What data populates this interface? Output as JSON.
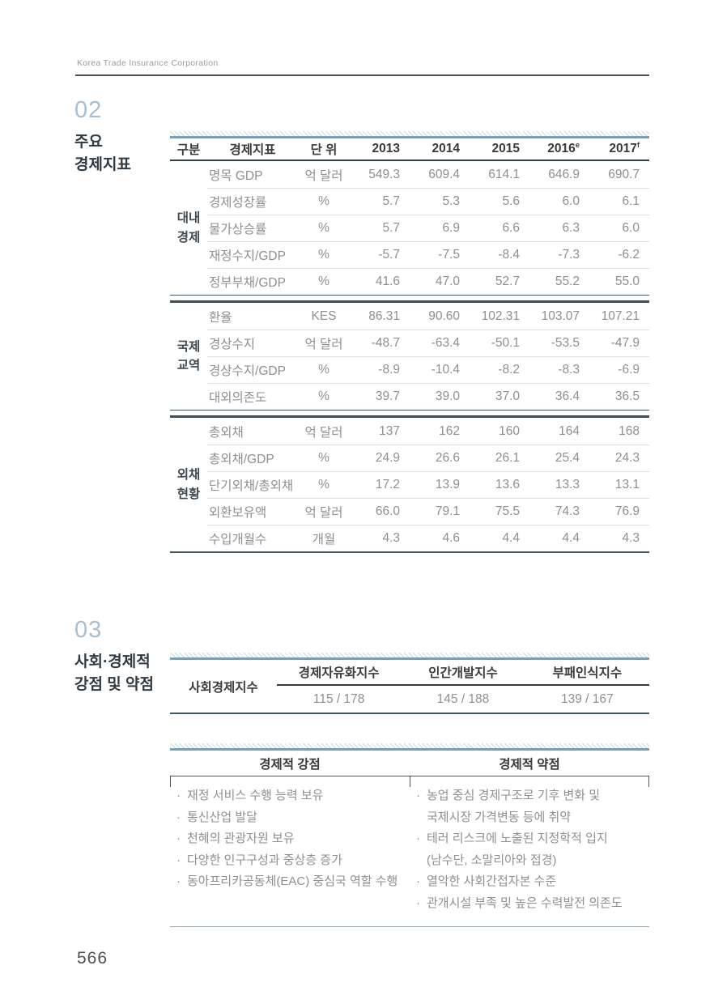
{
  "brand": "Korea Trade Insurance Corporation",
  "page_number": "566",
  "section02": {
    "number": "02",
    "title_line1": "주요",
    "title_line2": "경제지표",
    "table": {
      "h_group": "구분",
      "h_indicator": "경제지표",
      "h_unit": "단 위",
      "years": [
        {
          "label": "2013",
          "sup": ""
        },
        {
          "label": "2014",
          "sup": ""
        },
        {
          "label": "2015",
          "sup": ""
        },
        {
          "label": "2016",
          "sup": "e"
        },
        {
          "label": "2017",
          "sup": "f"
        }
      ],
      "groups": [
        {
          "name1": "대내",
          "name2": "경제",
          "rows": [
            {
              "label": "명목 GDP",
              "unit": "억 달러",
              "values": [
                "549.3",
                "609.4",
                "614.1",
                "646.9",
                "690.7"
              ]
            },
            {
              "label": "경제성장률",
              "unit": "%",
              "values": [
                "5.7",
                "5.3",
                "5.6",
                "6.0",
                "6.1"
              ]
            },
            {
              "label": "물가상승률",
              "unit": "%",
              "values": [
                "5.7",
                "6.9",
                "6.6",
                "6.3",
                "6.0"
              ]
            },
            {
              "label": "재정수지/GDP",
              "unit": "%",
              "values": [
                "-5.7",
                "-7.5",
                "-8.4",
                "-7.3",
                "-6.2"
              ]
            },
            {
              "label": "정부부채/GDP",
              "unit": "%",
              "values": [
                "41.6",
                "47.0",
                "52.7",
                "55.2",
                "55.0"
              ]
            }
          ]
        },
        {
          "name1": "국제",
          "name2": "교역",
          "rows": [
            {
              "label": "환율",
              "unit": "KES",
              "values": [
                "86.31",
                "90.60",
                "102.31",
                "103.07",
                "107.21"
              ]
            },
            {
              "label": "경상수지",
              "unit": "억 달러",
              "values": [
                "-48.7",
                "-63.4",
                "-50.1",
                "-53.5",
                "-47.9"
              ]
            },
            {
              "label": "경상수지/GDP",
              "unit": "%",
              "values": [
                "-8.9",
                "-10.4",
                "-8.2",
                "-8.3",
                "-6.9"
              ]
            },
            {
              "label": "대외의존도",
              "unit": "%",
              "values": [
                "39.7",
                "39.0",
                "37.0",
                "36.4",
                "36.5"
              ]
            }
          ]
        },
        {
          "name1": "외채",
          "name2": "현황",
          "rows": [
            {
              "label": "총외채",
              "unit": "억 달러",
              "values": [
                "137",
                "162",
                "160",
                "164",
                "168"
              ]
            },
            {
              "label": "총외채/GDP",
              "unit": "%",
              "values": [
                "24.9",
                "26.6",
                "26.1",
                "25.4",
                "24.3"
              ]
            },
            {
              "label": "단기외채/총외채",
              "unit": "%",
              "values": [
                "17.2",
                "13.9",
                "13.6",
                "13.3",
                "13.1"
              ]
            },
            {
              "label": "외환보유액",
              "unit": "억 달러",
              "values": [
                "66.0",
                "79.1",
                "75.5",
                "74.3",
                "76.9"
              ]
            },
            {
              "label": "수입개월수",
              "unit": "개월",
              "values": [
                "4.3",
                "4.6",
                "4.4",
                "4.4",
                "4.3"
              ]
            }
          ]
        }
      ]
    }
  },
  "section03": {
    "number": "03",
    "title_line1": "사회·경제적",
    "title_line2": "강점 및 약점",
    "index_table": {
      "row_header": "사회경제지수",
      "cols": [
        {
          "label": "경제자유화지수",
          "value": "115 / 178"
        },
        {
          "label": "인간개발지수",
          "value": "145 / 188"
        },
        {
          "label": "부패인식지수",
          "value": "139 / 167"
        }
      ]
    },
    "sw": {
      "strengths_title": "경제적 강점",
      "weaknesses_title": "경제적 약점",
      "bullet": "·",
      "strengths": [
        "재정 서비스 수행 능력 보유",
        "통신산업 발달",
        "천혜의 관광자원 보유",
        "다양한 인구구성과 중상층 증가",
        "동아프리카공동체(EAC) 중심국 역할 수행"
      ],
      "weaknesses": [
        "농업 중심 경제구조로 기후 변화 및\n국제시장 가격변동 등에 취약",
        "테러 리스크에 노출된 지정학적 입지\n(남수단, 소말리아와 접경)",
        "열악한 사회간접자본 수준",
        "관개시설 부족 및 높은 수력발전 의존도"
      ]
    }
  }
}
